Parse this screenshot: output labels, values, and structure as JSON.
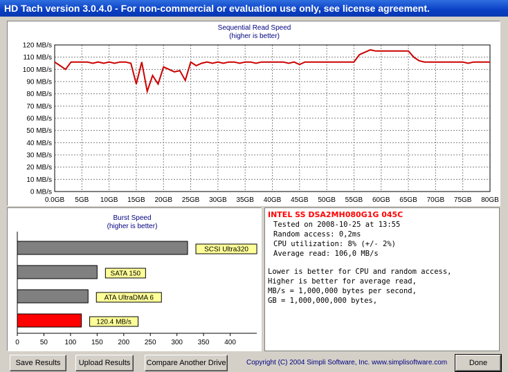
{
  "window": {
    "title": "HD Tach version 3.0.4.0  - For non-commercial or evaluation use only, see license agreement."
  },
  "sequential_chart": {
    "title": "Sequential Read Speed",
    "subtitle": "(higher is better)",
    "line_color": "#cc0000"
  },
  "burst_chart": {
    "title": "Burst Speed",
    "subtitle": "(higher is better)"
  },
  "chart_data": [
    {
      "type": "line",
      "title": "Sequential Read Speed",
      "subtitle": "(higher is better)",
      "xlabel": "",
      "ylabel": "",
      "x_unit": "GB",
      "y_unit": "MB/s",
      "xlim": [
        0,
        80
      ],
      "ylim": [
        0,
        120
      ],
      "x_ticks": [
        "0.0GB",
        "5GB",
        "10GB",
        "15GB",
        "20GB",
        "25GB",
        "30GB",
        "35GB",
        "40GB",
        "45GB",
        "50GB",
        "55GB",
        "60GB",
        "65GB",
        "70GB",
        "75GB",
        "80GB"
      ],
      "y_ticks": [
        "0 MB/s",
        "10 MB/s",
        "20 MB/s",
        "30 MB/s",
        "40 MB/s",
        "50 MB/s",
        "60 MB/s",
        "70 MB/s",
        "80 MB/s",
        "90 MB/s",
        "100 MB/s",
        "110 MB/s",
        "120 MB/s"
      ],
      "grid": true,
      "series": [
        {
          "x": [
            0,
            1,
            2,
            3,
            4,
            5,
            6,
            7,
            8,
            9,
            10,
            11,
            12,
            13,
            14,
            15,
            16,
            17,
            18,
            19,
            20,
            21,
            22,
            23,
            24,
            25,
            26,
            27,
            28,
            29,
            30,
            31,
            32,
            33,
            34,
            35,
            36,
            37,
            38,
            39,
            40,
            41,
            42,
            43,
            44,
            45,
            46,
            47,
            48,
            49,
            50,
            51,
            52,
            53,
            54,
            55,
            56,
            57,
            58,
            59,
            60,
            61,
            62,
            63,
            64,
            65,
            66,
            67,
            68,
            69,
            70,
            71,
            72,
            73,
            74,
            75,
            76,
            77,
            78,
            79,
            80
          ],
          "y": [
            106,
            103,
            100,
            106,
            106,
            106,
            106,
            105,
            106,
            105,
            106,
            105,
            106,
            106,
            105,
            88,
            106,
            82,
            95,
            88,
            102,
            100,
            98,
            99,
            91,
            106,
            103,
            105,
            106,
            105,
            106,
            105,
            106,
            106,
            105,
            106,
            106,
            105,
            106,
            106,
            106,
            106,
            106,
            105,
            106,
            104,
            106,
            106,
            106,
            106,
            106,
            106,
            106,
            106,
            106,
            106,
            112,
            114,
            116,
            115,
            115,
            115,
            115,
            115,
            115,
            115,
            110,
            107,
            106,
            106,
            106,
            106,
            106,
            106,
            106,
            106,
            105,
            106,
            106,
            106,
            106
          ]
        }
      ]
    },
    {
      "type": "bar",
      "orientation": "horizontal",
      "title": "Burst Speed",
      "subtitle": "(higher is better)",
      "xlim": [
        0,
        450
      ],
      "x_ticks": [
        "0",
        "50",
        "100",
        "150",
        "200",
        "250",
        "300",
        "350",
        "400"
      ],
      "grid": false,
      "categories": [
        "SCSI Ultra320",
        "SATA 150",
        "ATA UltraDMA 6",
        "120.4 MB/s"
      ],
      "values": [
        320,
        150,
        133,
        120.4
      ],
      "colors": [
        "#808080",
        "#808080",
        "#808080",
        "#ff0000"
      ],
      "label_color": "#ffff99"
    }
  ],
  "info": {
    "drive_name": "INTEL SS DSA2MH080G1G 045C",
    "tested_on": "Tested on 2008-10-25 at 13:55",
    "random_access": "Random access: 0,2ms",
    "cpu_utilization": "CPU utilization: 8% (+/- 2%)",
    "average_read": "Average read: 106,0 MB/s",
    "note1": "Lower is better for CPU and random access,",
    "note2": "Higher is better for average read,",
    "note3": "MB/s = 1,000,000 bytes per second,",
    "note4": "GB = 1,000,000,000 bytes,"
  },
  "footer": {
    "save_results": "Save Results",
    "upload_results": "Upload Results",
    "compare_drive": "Compare Another Drive",
    "copyright": "Copyright (C) 2004 Simpli Software, Inc. www.simplisoftware.com",
    "done": "Done"
  }
}
